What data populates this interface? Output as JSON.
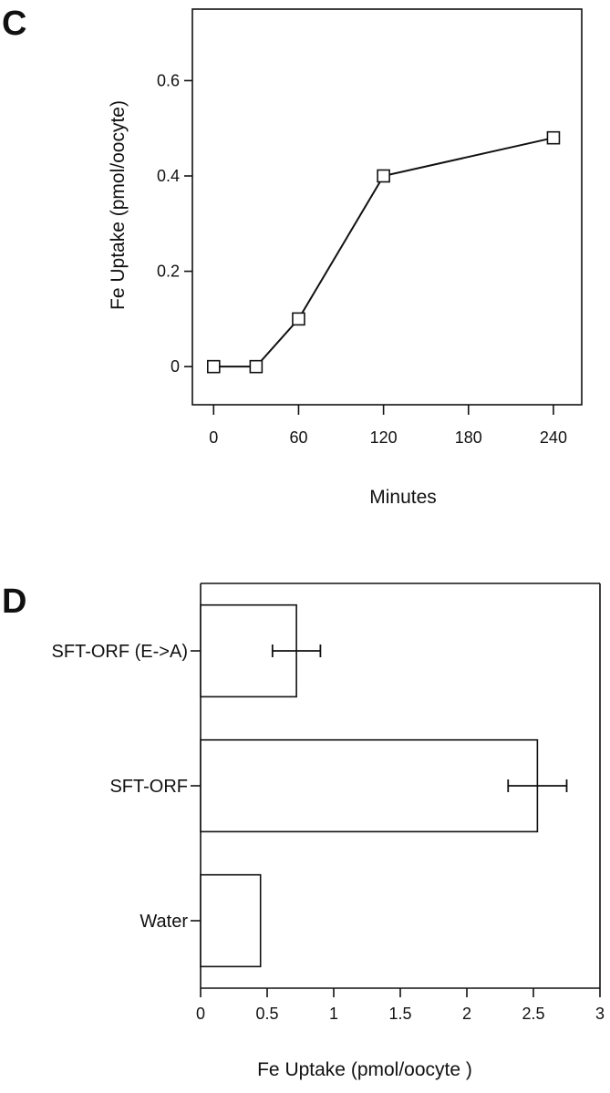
{
  "chart_data": [
    {
      "panel": "C",
      "type": "line",
      "title": "",
      "xlabel": "Minutes",
      "ylabel": "Fe Uptake (pmol/oocyte)",
      "x_ticks": [
        "0",
        "60",
        "120",
        "180",
        "240"
      ],
      "y_ticks": [
        "0",
        "0.2",
        "0.4",
        "0.6"
      ],
      "xlim": [
        -15,
        260
      ],
      "ylim": [
        -0.08,
        0.75
      ],
      "grid": false,
      "series": [
        {
          "x": [
            0,
            30,
            60,
            120,
            240
          ],
          "y": [
            0.0,
            0.0,
            0.1,
            0.4,
            0.48
          ]
        }
      ]
    },
    {
      "panel": "D",
      "type": "bar",
      "orientation": "horizontal",
      "title": "",
      "xlabel": "Fe Uptake (pmol/oocyte )",
      "ylabel": "",
      "x_ticks": [
        "0",
        "0.5",
        "1",
        "1.5",
        "2",
        "2.5",
        "3"
      ],
      "xlim": [
        0,
        3
      ],
      "grid": false,
      "categories": [
        "SFT-ORF (E->A)",
        "SFT-ORF",
        "Water"
      ],
      "values": [
        0.72,
        2.53,
        0.45
      ],
      "errors": [
        0.18,
        0.22,
        null
      ]
    }
  ]
}
